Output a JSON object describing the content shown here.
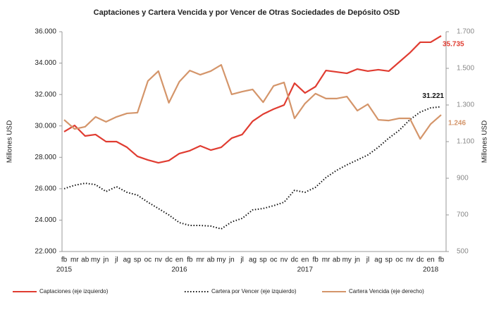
{
  "chart_data": {
    "type": "line",
    "title": "Captaciones y Cartera Vencida y por Vencer de Otras Sociedades de Depósito OSD",
    "y_label": "Millones USD",
    "y2_label": "Millones USD",
    "categories": [
      "fb",
      "mr",
      "ab",
      "my",
      "jn",
      "jl",
      "ag",
      "sp",
      "oc",
      "nv",
      "dc",
      "en",
      "fb",
      "mr",
      "ab",
      "my",
      "jn",
      "jl",
      "ag",
      "sp",
      "oc",
      "nv",
      "dc",
      "en",
      "fb",
      "mr",
      "ab",
      "my",
      "jn",
      "jl",
      "ag",
      "sp",
      "oc",
      "nv",
      "dc",
      "en",
      "fb"
    ],
    "x_group_labels": [
      "2015",
      null,
      null,
      null,
      null,
      null,
      null,
      null,
      null,
      null,
      null,
      "2016",
      null,
      null,
      null,
      null,
      null,
      null,
      null,
      null,
      null,
      null,
      null,
      "2017",
      null,
      null,
      null,
      null,
      null,
      null,
      null,
      null,
      null,
      null,
      null,
      "2018",
      null
    ],
    "series": [
      {
        "name": "Captaciones (eje izquierdo)",
        "color": "#e03c31",
        "style": "solid",
        "values": [
          29630,
          30030,
          29360,
          29450,
          29000,
          29000,
          28640,
          28060,
          27830,
          27650,
          27790,
          28240,
          28420,
          28730,
          28460,
          28640,
          29220,
          29450,
          30300,
          30750,
          31070,
          31330,
          32720,
          32100,
          32500,
          33530,
          33440,
          33350,
          33620,
          33490,
          33580,
          33490,
          34070,
          34650,
          35330,
          35330,
          35735
        ],
        "value_labels": [
          null,
          null,
          null,
          null,
          null,
          null,
          null,
          null,
          null,
          null,
          null,
          null,
          null,
          null,
          null,
          null,
          null,
          null,
          null,
          null,
          null,
          null,
          null,
          null,
          null,
          null,
          null,
          null,
          null,
          null,
          null,
          null,
          null,
          null,
          null,
          null,
          "35.735"
        ]
      },
      {
        "name": "Cartera por Vencer (eje izquierdo)",
        "color": "#111111",
        "style": "dotted",
        "values": [
          26000,
          26220,
          26350,
          26260,
          25820,
          26130,
          25770,
          25590,
          25140,
          24740,
          24330,
          23840,
          23660,
          23660,
          23620,
          23440,
          23890,
          24110,
          24650,
          24740,
          24920,
          25140,
          25900,
          25770,
          26090,
          26710,
          27160,
          27520,
          27830,
          28150,
          28640,
          29220,
          29720,
          30390,
          30880,
          31150,
          31221
        ],
        "value_labels": [
          null,
          null,
          null,
          null,
          null,
          null,
          null,
          null,
          null,
          null,
          null,
          null,
          null,
          null,
          null,
          null,
          null,
          null,
          null,
          null,
          null,
          null,
          null,
          null,
          null,
          null,
          null,
          null,
          null,
          null,
          null,
          null,
          null,
          null,
          null,
          null,
          "31.221"
        ]
      },
      {
        "name": "Cartera Vencida (eje derecho)",
        "color": "#d4956a",
        "style": "solid",
        "axis": "y2",
        "values": [
          1219,
          1169,
          1181,
          1235,
          1208,
          1235,
          1254,
          1258,
          1431,
          1485,
          1312,
          1427,
          1488,
          1465,
          1485,
          1519,
          1358,
          1373,
          1385,
          1315,
          1404,
          1423,
          1227,
          1308,
          1362,
          1335,
          1335,
          1346,
          1269,
          1304,
          1219,
          1215,
          1227,
          1227,
          1115,
          1196,
          1246
        ],
        "value_labels": [
          null,
          null,
          null,
          null,
          null,
          null,
          null,
          null,
          null,
          null,
          null,
          null,
          null,
          null,
          null,
          null,
          null,
          null,
          null,
          null,
          null,
          null,
          null,
          null,
          null,
          null,
          null,
          null,
          null,
          null,
          null,
          null,
          null,
          null,
          null,
          null,
          "1.246"
        ]
      }
    ],
    "ylim": [
      22000,
      36000
    ],
    "yticks": [
      {
        "value": 22000,
        "label": "22.000"
      },
      {
        "value": 24000,
        "label": "24.000"
      },
      {
        "value": 26000,
        "label": "26.000"
      },
      {
        "value": 28000,
        "label": "28.000"
      },
      {
        "value": 30000,
        "label": "30.000"
      },
      {
        "value": 32000,
        "label": "32.000"
      },
      {
        "value": 34000,
        "label": "34.000"
      },
      {
        "value": 36000,
        "label": "36.000"
      }
    ],
    "y2lim": [
      500,
      1700
    ],
    "y2ticks": [
      500,
      700,
      900,
      {
        "value": 1100,
        "label": "1.100"
      },
      {
        "value": 1300,
        "label": "1.300"
      },
      {
        "value": 1500,
        "label": "1.500"
      },
      {
        "value": 1700,
        "label": "1.700"
      }
    ],
    "grid": false,
    "legend": "bottom"
  }
}
